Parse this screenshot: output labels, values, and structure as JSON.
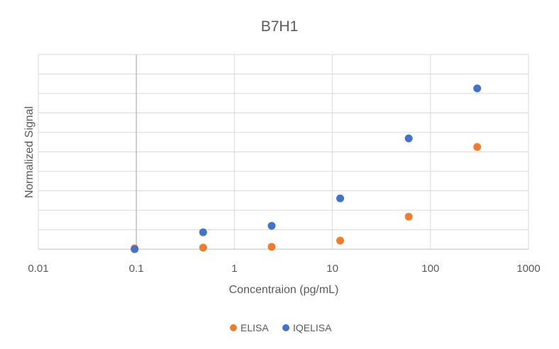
{
  "chart_data": {
    "type": "scatter",
    "title": "B7H1",
    "xlabel": "Concentraion (pg/mL)",
    "ylabel": "Normalized Signal",
    "x_scale": "log",
    "xlim": [
      0.01,
      1000
    ],
    "ylim": [
      0,
      100
    ],
    "x_ticks": [
      "0.01",
      "0.1",
      "1",
      "10",
      "100",
      "1000"
    ],
    "y_ticks_shown": false,
    "grid": true,
    "legend_position": "bottom",
    "series": [
      {
        "name": "ELISA",
        "color": "#ED7D31",
        "points": [
          {
            "x": 0.096,
            "y": 0.4
          },
          {
            "x": 0.48,
            "y": 0.8
          },
          {
            "x": 2.4,
            "y": 1.2
          },
          {
            "x": 12,
            "y": 4.4
          },
          {
            "x": 60,
            "y": 16.7
          },
          {
            "x": 300,
            "y": 52.5
          }
        ]
      },
      {
        "name": "IQELISA",
        "color": "#4472C4",
        "points": [
          {
            "x": 0.096,
            "y": 0.0
          },
          {
            "x": 0.48,
            "y": 8.7
          },
          {
            "x": 2.4,
            "y": 12.0
          },
          {
            "x": 12,
            "y": 26.1
          },
          {
            "x": 60,
            "y": 56.9
          },
          {
            "x": 300,
            "y": 82.6
          }
        ]
      }
    ]
  }
}
